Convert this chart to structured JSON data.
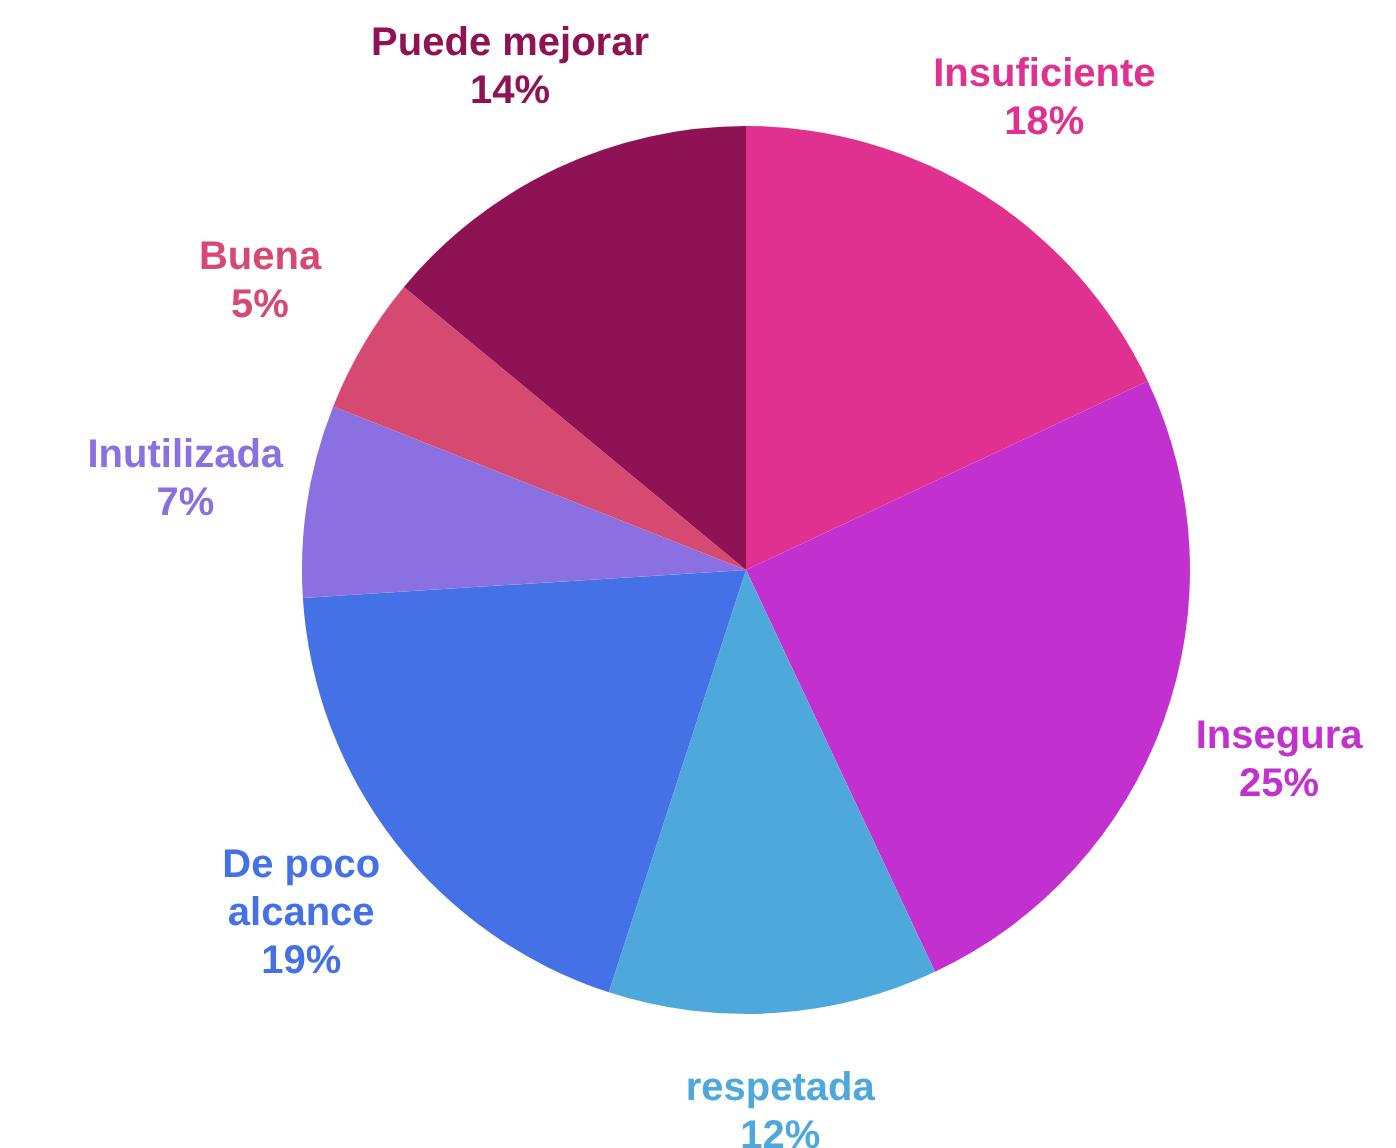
{
  "chart_data": {
    "type": "pie",
    "categories": [
      "Insuficiente",
      "Insegura",
      "respetada",
      "De poco alcance",
      "Inutilizada",
      "Buena",
      "Puede mejorar"
    ],
    "values": [
      18,
      25,
      12,
      19,
      7,
      5,
      14
    ],
    "value_labels": [
      "18%",
      "25%",
      "12%",
      "19%",
      "7%",
      "5%",
      "14%"
    ],
    "colors": [
      "#e03191",
      "#c230d0",
      "#4fa8dc",
      "#4472e6",
      "#8a70e0",
      "#d64a72",
      "#8e1254"
    ]
  }
}
